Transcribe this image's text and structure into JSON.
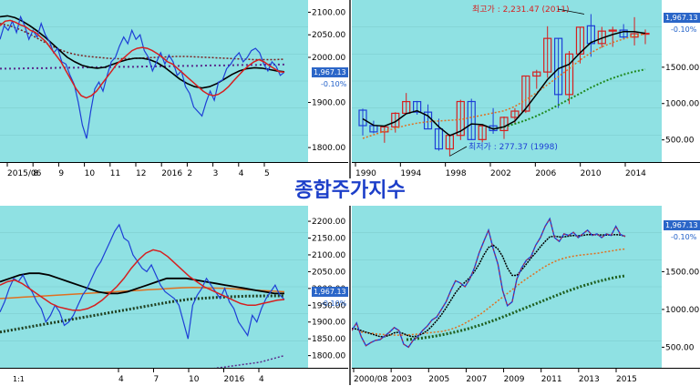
{
  "title": "종합주가지수",
  "charts": [
    {
      "id": "daily",
      "price_label": "1,967.13",
      "pct_label": "-0.10%",
      "y_ticks": [
        1800,
        1900,
        2000,
        2050,
        2100
      ],
      "y_tick_labels": [
        "1800.00",
        "1900.00",
        "2000.00",
        "2050.00",
        "2100.00"
      ],
      "x_labels": [
        "2015/06",
        "8",
        "9",
        "10",
        "11",
        "12",
        "2016",
        "2",
        "3",
        "4",
        "5"
      ]
    },
    {
      "id": "yearly",
      "price_label": "1,967.13",
      "pct_label": "-0.10%",
      "y_tick_labels": [
        "1500.00",
        "1000.00",
        "500.00"
      ],
      "x_labels": [
        "1990",
        "1994",
        "1998",
        "2002",
        "2006",
        "2010",
        "2014"
      ],
      "annotation_high": "최고가 : 2,231.47 (2011)",
      "annotation_low": "최저가 : 277.37 (1998)"
    },
    {
      "id": "weekly",
      "price_label": "1,967.13",
      "pct_label": "-0.10%",
      "y_tick_labels": [
        "2200.00",
        "2150.00",
        "2100.00",
        "2050.00",
        "2000.00",
        "1950.00",
        "1900.00",
        "1850.00",
        "1800.00"
      ],
      "x_labels": [
        "4",
        "7",
        "10",
        "2016",
        "4"
      ]
    },
    {
      "id": "monthly",
      "price_label": "1,967.13",
      "pct_label": "-0.10%",
      "y_tick_labels": [
        "1500.00",
        "1000.00",
        "500.00"
      ],
      "x_labels": [
        "2000/08",
        "2003",
        "2005",
        "2007",
        "2009",
        "2011",
        "2013",
        "2015"
      ]
    }
  ],
  "toolbar": {
    "zoom_label": "1:1"
  },
  "chart_data": [
    {
      "type": "line",
      "ylim": [
        1780,
        2115
      ],
      "series_colors": [
        "#1e3fd6",
        "#d61f1f",
        "#000000",
        "#7a1f1f",
        "#5a2a8a"
      ],
      "price": [
        2040,
        2070,
        2060,
        2080,
        2055,
        2090,
        2070,
        2040,
        2060,
        2045,
        2075,
        2050,
        2035,
        2010,
        2020,
        1990,
        1985,
        1960,
        1940,
        1900,
        1850,
        1820,
        1880,
        1930,
        1945,
        1925,
        1960,
        1990,
        2000,
        2025,
        2045,
        2030,
        2060,
        2040,
        2050,
        2015,
        2000,
        1970,
        1990,
        2010,
        1985,
        2005,
        1990,
        1960,
        1970,
        1935,
        1920,
        1890,
        1880,
        1870,
        1900,
        1925,
        1905,
        1945,
        1950,
        1975,
        1985,
        2000,
        2010,
        1990,
        2000,
        2015,
        2020,
        2010,
        1985,
        1970,
        1990,
        1980,
        1960,
        1967
      ],
      "ma1": [
        2070,
        2080,
        2082,
        2078,
        2072,
        2068,
        2060,
        2055,
        2045,
        2035,
        2020,
        2005,
        1990,
        1970,
        1950,
        1930,
        1915,
        1910,
        1915,
        1925,
        1940,
        1955,
        1970,
        1985,
        1995,
        2005,
        2015,
        2020,
        2022,
        2020,
        2015,
        2008,
        2000,
        1990,
        1985,
        1975,
        1965,
        1955,
        1945,
        1935,
        1925,
        1918,
        1915,
        1918,
        1925,
        1935,
        1948,
        1960,
        1972,
        1982,
        1990,
        1995,
        1990,
        1982,
        1975,
        1968,
        1967
      ],
      "ma2": [
        2090,
        2092,
        2088,
        2080,
        2070,
        2058,
        2045,
        2030,
        2015,
        2000,
        1990,
        1982,
        1978,
        1976,
        1978,
        1984,
        1990,
        1995,
        1998,
        1998,
        1995,
        1988,
        1978,
        1965,
        1952,
        1942,
        1935,
        1932,
        1935,
        1942,
        1952,
        1962,
        1970,
        1975,
        1977,
        1976,
        1973,
        1970,
        1968
      ],
      "ma3": [
        2075,
        2070,
        2062,
        2052,
        2040,
        2028,
        2018,
        2010,
        2005,
        2002,
        2000,
        1998,
        1997,
        1997,
        1998,
        1999,
        2000,
        2001,
        2002,
        2002,
        2001,
        2000,
        1999,
        1998,
        1997,
        1996,
        1995,
        1995,
        1995,
        1996
      ],
      "ma4": [
        1975,
        1975,
        1976,
        1976,
        1977,
        1977,
        1978,
        1978,
        1979,
        1979,
        1980,
        1980,
        1981,
        1981,
        1982,
        1982,
        1983,
        1983,
        1984,
        1984
      ]
    },
    {
      "type": "bar",
      "ylim": [
        270,
        2350
      ],
      "x": [
        1990,
        1991,
        1992,
        1993,
        1994,
        1995,
        1996,
        1997,
        1998,
        1999,
        2000,
        2001,
        2002,
        2003,
        2004,
        2005,
        2006,
        2007,
        2008,
        2009,
        2010,
        2011,
        2012,
        2013,
        2014,
        2015,
        2016
      ],
      "open": [
        909,
        696,
        610,
        678,
        866,
        1027,
        882,
        651,
        376,
        562,
        1028,
        504,
        693,
        628,
        810,
        896,
        1379,
        1434,
        1897,
        1124,
        1682,
        2070,
        1826,
        1997,
        2011,
        1915,
        1961
      ],
      "close": [
        696,
        610,
        678,
        866,
        1027,
        882,
        651,
        376,
        562,
        1028,
        504,
        693,
        628,
        810,
        896,
        1379,
        1434,
        1897,
        1124,
        1682,
        2051,
        1826,
        1997,
        2011,
        1916,
        1961,
        1967
      ],
      "high": [
        930,
        763,
        700,
        880,
        1145,
        1036,
        988,
        792,
        580,
        1052,
        1066,
        704,
        938,
        822,
        936,
        1380,
        1464,
        2064,
        1901,
        1723,
        2052,
        2231,
        2057,
        2059,
        2093,
        2189,
        2020
      ],
      "low": [
        560,
        590,
        460,
        600,
        855,
        847,
        651,
        351,
        277,
        498,
        500,
        468,
        584,
        512,
        719,
        870,
        1203,
        1355,
        938,
        993,
        1552,
        1644,
        1769,
        1780,
        1880,
        1800,
        1817
      ],
      "ma_black": [
        790,
        700,
        690,
        750,
        860,
        900,
        830,
        680,
        560,
        620,
        720,
        710,
        650,
        680,
        760,
        930,
        1130,
        1330,
        1480,
        1540,
        1700,
        1840,
        1900,
        1950,
        1990,
        1990,
        1967
      ],
      "ma_orange": [
        520,
        570,
        620,
        660,
        700,
        730,
        750,
        760,
        770,
        780,
        810,
        840,
        870,
        900,
        960,
        1050,
        1150,
        1260,
        1370,
        1480,
        1600,
        1700,
        1780,
        1840,
        1890,
        1930,
        1960
      ],
      "ma_green": [
        null,
        null,
        null,
        null,
        null,
        null,
        null,
        null,
        null,
        null,
        null,
        null,
        650,
        680,
        720,
        770,
        830,
        900,
        980,
        1060,
        1140,
        1220,
        1290,
        1350,
        1400,
        1440,
        1470
      ]
    },
    {
      "type": "line",
      "ylim": [
        1780,
        2230
      ],
      "price": [
        1930,
        1960,
        2000,
        2030,
        2020,
        2040,
        2010,
        1990,
        1960,
        1940,
        1900,
        1920,
        1950,
        1930,
        1890,
        1900,
        1920,
        1950,
        1980,
        2000,
        2030,
        2060,
        2080,
        2110,
        2140,
        2170,
        2190,
        2150,
        2140,
        2100,
        2080,
        2060,
        2050,
        2070,
        2040,
        2010,
        1990,
        1980,
        1970,
        1950,
        1900,
        1850,
        1950,
        1980,
        2000,
        2030,
        2010,
        1990,
        1970,
        2000,
        1960,
        1940,
        1900,
        1880,
        1860,
        1920,
        1900,
        1940,
        1970,
        1990,
        2010,
        1980,
        1967
      ],
      "ma_red": [
        2010,
        2020,
        2025,
        2015,
        2000,
        1985,
        1970,
        1955,
        1945,
        1940,
        1935,
        1935,
        1940,
        1950,
        1965,
        1985,
        2005,
        2030,
        2060,
        2085,
        2105,
        2115,
        2110,
        2095,
        2075,
        2055,
        2035,
        2020,
        2005,
        1995,
        1985,
        1975,
        1965,
        1955,
        1950,
        1950,
        1955,
        1960,
        1965,
        1967
      ],
      "ma_black": [
        2020,
        2030,
        2040,
        2045,
        2045,
        2040,
        2030,
        2020,
        2010,
        2000,
        1990,
        1985,
        1985,
        1990,
        2000,
        2010,
        2020,
        2030,
        2030,
        2030,
        2025,
        2020,
        2015,
        2010,
        2005,
        2000,
        1995,
        1990,
        1985,
        1985
      ],
      "ma_orange": [
        1970,
        1972,
        1974,
        1976,
        1978,
        1980,
        1982,
        1984,
        1986,
        1988,
        1990,
        1992,
        1994,
        1996,
        1998,
        2000,
        2002,
        2003,
        2002,
        2001,
        2000,
        1998,
        1996,
        1994,
        1992,
        1990
      ],
      "ma_green_dotted": [
        1870,
        1880,
        1890,
        1900,
        1910,
        1920,
        1930,
        1940,
        1950,
        1960,
        1968,
        1972,
        1975,
        1977,
        1978,
        1978
      ],
      "ma_purple_dotted": [
        1760,
        1765,
        1770,
        1775,
        1780,
        1790,
        1800
      ]
    },
    {
      "type": "line",
      "ylim": [
        300,
        2300
      ],
      "x_start": "2000/08",
      "price": [
        720,
        820,
        640,
        520,
        560,
        590,
        600,
        650,
        700,
        760,
        720,
        540,
        500,
        590,
        640,
        720,
        780,
        860,
        900,
        1000,
        1100,
        1250,
        1380,
        1350,
        1300,
        1400,
        1550,
        1750,
        1900,
        2050,
        1800,
        1600,
        1250,
        1050,
        1100,
        1400,
        1550,
        1650,
        1700,
        1850,
        1950,
        2100,
        2200,
        1950,
        1900,
        2000,
        1980,
        2020,
        1950,
        2000,
        2050,
        1980,
        2000,
        1950,
        2000,
        1980,
        2100,
        1990,
        1967
      ],
      "ma_black": [
        750,
        740,
        720,
        700,
        680,
        660,
        640,
        640,
        660,
        690,
        700,
        680,
        650,
        640,
        650,
        680,
        720,
        780,
        850,
        930,
        1020,
        1120,
        1220,
        1300,
        1360,
        1420,
        1500,
        1600,
        1720,
        1820,
        1850,
        1800,
        1700,
        1550,
        1450,
        1450,
        1520,
        1600,
        1680,
        1750,
        1830,
        1900,
        1960,
        1970,
        1960,
        1960,
        1970,
        1980,
        1975,
        1980,
        1990,
        1990,
        1990,
        1985,
        1985,
        1985,
        1990,
        1985,
        1967
      ],
      "ma_orange": [
        700,
        690,
        680,
        670,
        665,
        660,
        660,
        665,
        670,
        680,
        690,
        700,
        710,
        730,
        760,
        800,
        850,
        900,
        960,
        1030,
        1100,
        1170,
        1240,
        1310,
        1380,
        1440,
        1500,
        1560,
        1610,
        1650,
        1680,
        1700,
        1715,
        1725,
        1735,
        1745,
        1760,
        1775,
        1790,
        1800
      ],
      "ma_green": [
        600,
        610,
        620,
        635,
        650,
        670,
        690,
        715,
        740,
        770,
        800,
        835,
        870,
        910,
        950,
        990,
        1030,
        1070,
        1110,
        1150,
        1190,
        1230,
        1265,
        1300,
        1330,
        1360,
        1385,
        1410,
        1430,
        1445
      ]
    }
  ]
}
